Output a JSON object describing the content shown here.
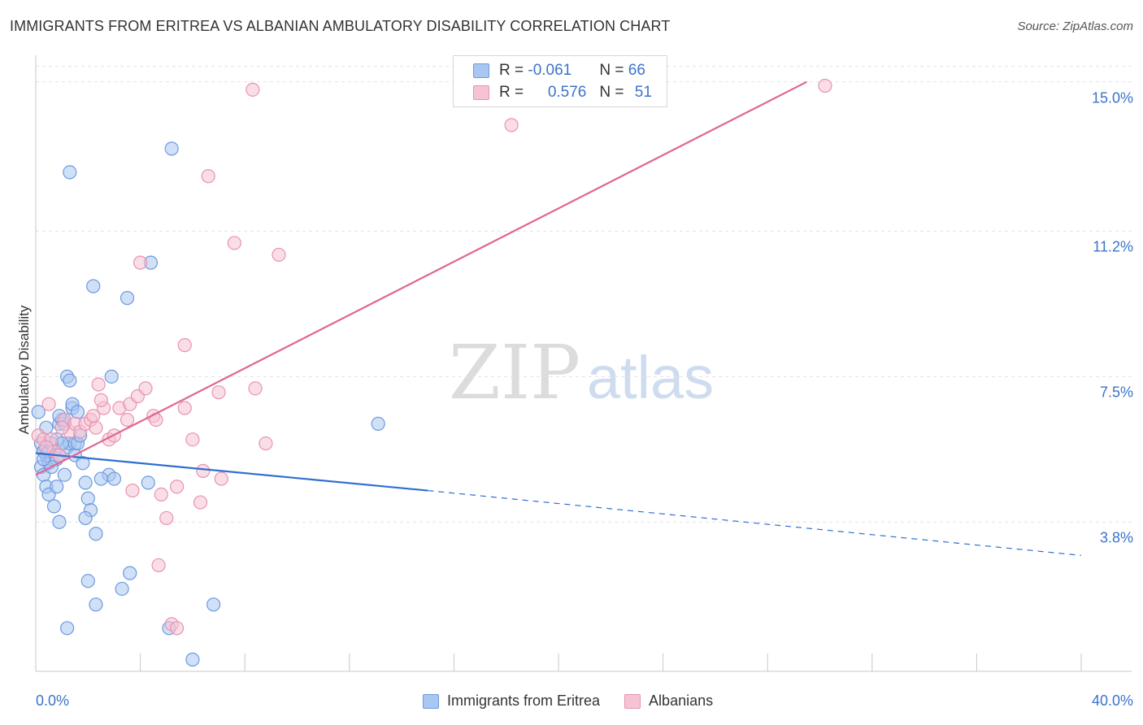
{
  "chart_data": {
    "type": "scatter",
    "title": "IMMIGRANTS FROM ERITREA VS ALBANIAN AMBULATORY DISABILITY CORRELATION CHART",
    "source": "Source: ZipAtlas.com",
    "xlabel": "",
    "ylabel": "Ambulatory Disability",
    "xlim": [
      0,
      40
    ],
    "ylim": [
      0,
      15.8
    ],
    "x_tick_labels": {
      "min": "0.0%",
      "max": "40.0%"
    },
    "y_ticks": [
      {
        "value": 3.8,
        "label": "3.8%"
      },
      {
        "value": 7.5,
        "label": "7.5%"
      },
      {
        "value": 11.2,
        "label": "11.2%"
      },
      {
        "value": 15.0,
        "label": "15.0%"
      }
    ],
    "watermark": "ZIPatlas",
    "series": [
      {
        "name": "Immigrants from Eritrea",
        "color": "#6c9ae0",
        "fill": "#a9c7f0",
        "line_color": "#2e6fd0",
        "R": "-0.061",
        "N": "66",
        "trend": {
          "x0": 0,
          "y0": 5.55,
          "x1": 15,
          "y1": 4.6,
          "dash_to_x": 40,
          "dash_to_y": 2.95
        },
        "points": [
          [
            0.1,
            6.6
          ],
          [
            0.2,
            5.8
          ],
          [
            0.3,
            5.6
          ],
          [
            0.2,
            5.2
          ],
          [
            0.4,
            5.5
          ],
          [
            0.3,
            5.0
          ],
          [
            0.4,
            4.7
          ],
          [
            0.5,
            5.3
          ],
          [
            0.6,
            5.4
          ],
          [
            0.5,
            4.5
          ],
          [
            0.7,
            5.6
          ],
          [
            0.8,
            5.9
          ],
          [
            0.9,
            6.3
          ],
          [
            1.0,
            6.4
          ],
          [
            1.1,
            6.3
          ],
          [
            1.2,
            5.7
          ],
          [
            1.3,
            5.8
          ],
          [
            1.4,
            6.7
          ],
          [
            1.2,
            7.5
          ],
          [
            1.3,
            7.4
          ],
          [
            1.5,
            5.8
          ],
          [
            1.5,
            5.5
          ],
          [
            1.6,
            5.8
          ],
          [
            1.7,
            6.0
          ],
          [
            1.8,
            5.3
          ],
          [
            1.9,
            4.8
          ],
          [
            2.0,
            4.4
          ],
          [
            2.1,
            4.1
          ],
          [
            1.9,
            3.9
          ],
          [
            2.3,
            3.5
          ],
          [
            1.0,
            5.8
          ],
          [
            0.9,
            5.5
          ],
          [
            0.8,
            5.4
          ],
          [
            0.7,
            4.2
          ],
          [
            0.8,
            4.7
          ],
          [
            1.1,
            5.0
          ],
          [
            0.9,
            3.8
          ],
          [
            1.4,
            6.8
          ],
          [
            1.6,
            6.6
          ],
          [
            2.9,
            7.5
          ],
          [
            2.2,
            9.8
          ],
          [
            3.5,
            9.5
          ],
          [
            2.0,
            2.3
          ],
          [
            2.3,
            1.7
          ],
          [
            1.2,
            1.1
          ],
          [
            3.6,
            2.5
          ],
          [
            3.3,
            2.1
          ],
          [
            6.8,
            1.7
          ],
          [
            5.1,
            1.1
          ],
          [
            6.0,
            0.3
          ],
          [
            5.2,
            13.3
          ],
          [
            1.3,
            12.7
          ],
          [
            4.4,
            10.4
          ],
          [
            13.1,
            6.3
          ],
          [
            4.3,
            4.8
          ],
          [
            2.8,
            5.0
          ],
          [
            2.5,
            4.9
          ],
          [
            3.0,
            4.9
          ],
          [
            0.6,
            5.2
          ],
          [
            0.3,
            5.6
          ],
          [
            0.4,
            6.2
          ],
          [
            1.1,
            6.4
          ],
          [
            0.5,
            5.6
          ],
          [
            0.9,
            6.5
          ],
          [
            0.3,
            5.4
          ],
          [
            0.6,
            5.8
          ]
        ]
      },
      {
        "name": "Albanians",
        "color": "#e893b0",
        "fill": "#f6c3d4",
        "line_color": "#e06793",
        "R": "0.576",
        "N": "51",
        "trend": {
          "x0": 0,
          "y0": 5.0,
          "x1": 29.5,
          "y1": 15.0
        },
        "points": [
          [
            0.1,
            6.0
          ],
          [
            0.3,
            5.9
          ],
          [
            0.5,
            6.8
          ],
          [
            0.7,
            5.6
          ],
          [
            0.9,
            5.5
          ],
          [
            1.1,
            6.4
          ],
          [
            1.3,
            6.1
          ],
          [
            1.5,
            6.3
          ],
          [
            1.7,
            6.1
          ],
          [
            1.9,
            6.3
          ],
          [
            2.1,
            6.4
          ],
          [
            2.3,
            6.2
          ],
          [
            2.6,
            6.7
          ],
          [
            2.8,
            5.9
          ],
          [
            3.0,
            6.0
          ],
          [
            3.2,
            6.7
          ],
          [
            3.5,
            6.4
          ],
          [
            3.6,
            6.8
          ],
          [
            3.9,
            7.0
          ],
          [
            4.2,
            7.2
          ],
          [
            4.5,
            6.5
          ],
          [
            4.6,
            6.4
          ],
          [
            3.7,
            4.6
          ],
          [
            4.8,
            4.5
          ],
          [
            5.0,
            3.9
          ],
          [
            4.7,
            2.7
          ],
          [
            5.4,
            4.7
          ],
          [
            5.7,
            6.7
          ],
          [
            6.0,
            5.9
          ],
          [
            6.4,
            5.1
          ],
          [
            6.3,
            4.3
          ],
          [
            7.0,
            7.1
          ],
          [
            7.1,
            4.9
          ],
          [
            8.4,
            7.2
          ],
          [
            8.8,
            5.8
          ],
          [
            6.6,
            12.6
          ],
          [
            7.6,
            10.9
          ],
          [
            9.3,
            10.6
          ],
          [
            4.0,
            10.4
          ],
          [
            5.7,
            8.3
          ],
          [
            8.3,
            14.8
          ],
          [
            18.2,
            13.9
          ],
          [
            30.2,
            14.9
          ],
          [
            5.2,
            1.2
          ],
          [
            5.4,
            1.1
          ],
          [
            2.2,
            6.5
          ],
          [
            2.5,
            6.9
          ],
          [
            1.0,
            6.2
          ],
          [
            0.6,
            5.9
          ],
          [
            0.4,
            5.7
          ],
          [
            2.4,
            7.3
          ]
        ]
      }
    ]
  }
}
